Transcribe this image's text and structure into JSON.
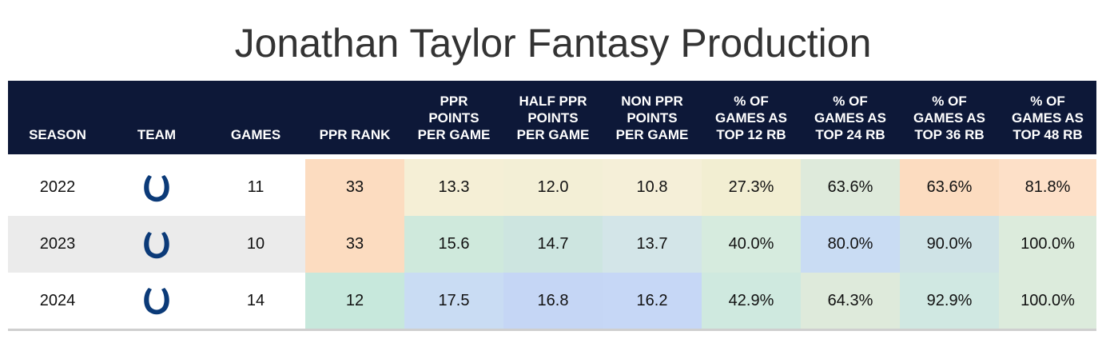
{
  "title": "Jonathan Taylor Fantasy Production",
  "table": {
    "headers": [
      [
        "SEASON"
      ],
      [
        "TEAM"
      ],
      [
        "GAMES"
      ],
      [
        "PPR RANK"
      ],
      [
        "PPR",
        "POINTS",
        "PER GAME"
      ],
      [
        "HALF PPR",
        "POINTS",
        "PER GAME"
      ],
      [
        "NON PPR",
        "POINTS",
        "PER GAME"
      ],
      [
        "% OF",
        "GAMES AS",
        "TOP 12 RB"
      ],
      [
        "% OF",
        "GAMES AS",
        "TOP 24 RB"
      ],
      [
        "% OF",
        "GAMES AS",
        "TOP 36 RB"
      ],
      [
        "% OF",
        "GAMES AS",
        "TOP 48 RB"
      ]
    ],
    "rows": [
      [
        "2022",
        null,
        "11",
        "33",
        "13.3",
        "12.0",
        "10.8",
        "27.3%",
        "63.6%",
        "63.6%",
        "81.8%"
      ],
      [
        "2023",
        null,
        "10",
        "33",
        "15.6",
        "14.7",
        "13.7",
        "40.0%",
        "80.0%",
        "90.0%",
        "100.0%"
      ],
      [
        "2024",
        null,
        "14",
        "12",
        "17.5",
        "16.8",
        "16.2",
        "42.9%",
        "64.3%",
        "92.9%",
        "100.0%"
      ]
    ]
  }
}
